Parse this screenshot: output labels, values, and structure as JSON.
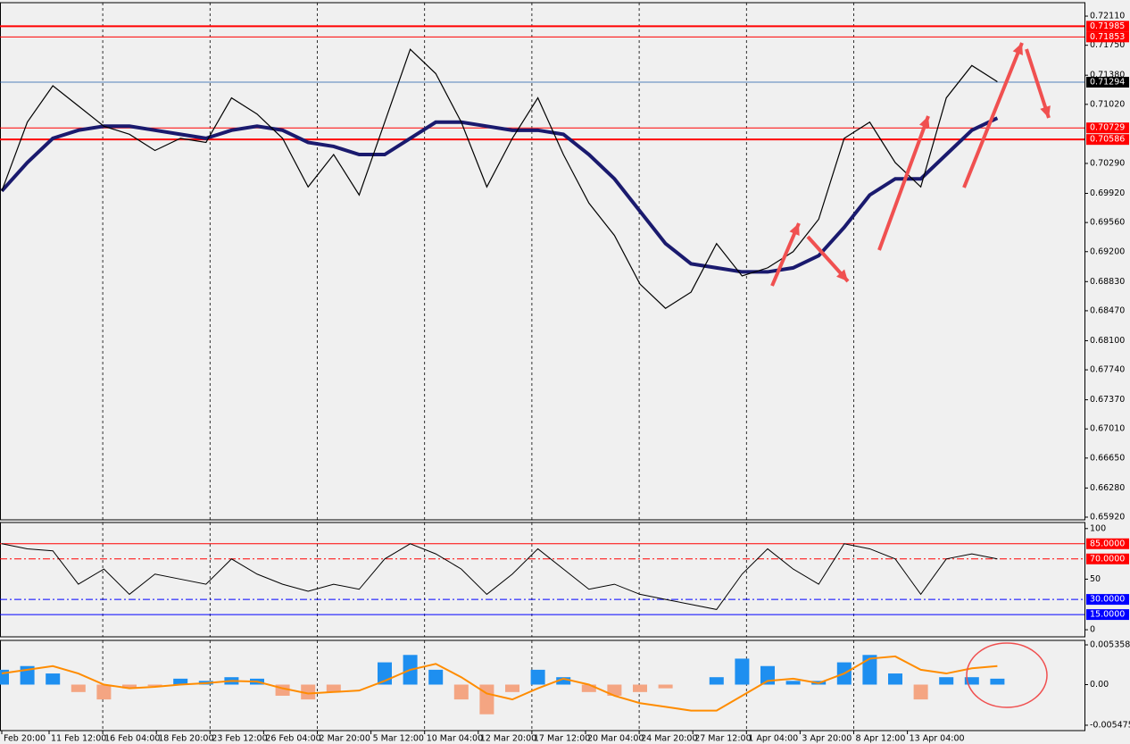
{
  "chart_data": [
    {
      "type": "line",
      "color": "#000000",
      "ma_color": "#1a1a6e",
      "ylim": [
        0.65887,
        0.72276
      ],
      "yticks": [
        {
          "value": 0.7211,
          "label": "0.72110"
        },
        {
          "value": 0.7175,
          "label": "0.71750"
        },
        {
          "value": 0.7138,
          "label": "0.71380"
        },
        {
          "value": 0.7102,
          "label": "0.71020"
        },
        {
          "value": 0.7029,
          "label": "0.70290"
        },
        {
          "value": 0.6992,
          "label": "0.69920"
        },
        {
          "value": 0.6956,
          "label": "0.69560"
        },
        {
          "value": 0.692,
          "label": "0.69200"
        },
        {
          "value": 0.6883,
          "label": "0.68830"
        },
        {
          "value": 0.6847,
          "label": "0.68470"
        },
        {
          "value": 0.681,
          "label": "0.68100"
        },
        {
          "value": 0.6774,
          "label": "0.67740"
        },
        {
          "value": 0.6737,
          "label": "0.67370"
        },
        {
          "value": 0.6701,
          "label": "0.67010"
        },
        {
          "value": 0.6665,
          "label": "0.66650"
        },
        {
          "value": 0.6628,
          "label": "0.66280"
        },
        {
          "value": 0.6592,
          "label": "0.65920"
        }
      ],
      "levels": [
        0.71985,
        0.71853,
        0.70729,
        0.70586
      ],
      "level_color": "#ff0000",
      "last_price": 0.71294,
      "last_price_color": "#1e5aa8",
      "values": [
        0.6995,
        0.708,
        0.7125,
        0.71,
        0.7075,
        0.7065,
        0.7045,
        0.706,
        0.7055,
        0.711,
        0.709,
        0.706,
        0.7,
        0.704,
        0.699,
        0.708,
        0.717,
        0.714,
        0.708,
        0.7,
        0.706,
        0.711,
        0.704,
        0.698,
        0.694,
        0.688,
        0.685,
        0.687,
        0.693,
        0.689,
        0.69,
        0.692,
        0.696,
        0.706,
        0.708,
        0.703,
        0.7,
        0.711,
        0.715,
        0.713
      ],
      "ma": [
        0.6995,
        0.703,
        0.706,
        0.707,
        0.7075,
        0.7075,
        0.707,
        0.7065,
        0.706,
        0.707,
        0.7075,
        0.707,
        0.7055,
        0.705,
        0.704,
        0.704,
        0.706,
        0.708,
        0.708,
        0.7075,
        0.707,
        0.707,
        0.7065,
        0.704,
        0.701,
        0.697,
        0.693,
        0.6905,
        0.69,
        0.6895,
        0.6895,
        0.69,
        0.6915,
        0.695,
        0.699,
        0.701,
        0.701,
        0.704,
        0.707,
        0.7085
      ]
    },
    {
      "type": "line",
      "color": "#000000",
      "ylim": [
        -7,
        106
      ],
      "yticks": [
        100,
        50,
        0
      ],
      "levels": [
        {
          "value": 85,
          "label": "85.0000"
        },
        {
          "value": 70,
          "label": "70.0000"
        },
        {
          "value": 30,
          "label": "30.0000"
        },
        {
          "value": 15,
          "label": "15.0000"
        }
      ],
      "level_colors": [
        "#ff0000",
        "#ff0000",
        "#0000ff",
        "#0000ff"
      ],
      "values": [
        85,
        80,
        78,
        45,
        60,
        35,
        55,
        50,
        45,
        70,
        55,
        45,
        38,
        45,
        40,
        70,
        85,
        75,
        60,
        35,
        55,
        80,
        60,
        40,
        45,
        35,
        30,
        25,
        20,
        55,
        80,
        60,
        45,
        85,
        80,
        70,
        35,
        70,
        75,
        70
      ]
    },
    {
      "type": "combo",
      "up_color": "#1e8ff0",
      "down_color": "#f4a582",
      "signal_color": "#ff8c00",
      "ylim": [
        -0.0062,
        0.00596
      ],
      "yticks": [
        0.005358,
        {
          "value": 0,
          "label": "0.00"
        },
        -0.005475
      ],
      "x_labels": [
        "Feb 20:00",
        "11 Feb 12:00",
        "16 Feb 04:00",
        "18 Feb 20:00",
        "23 Feb 12:00",
        "26 Feb 04:00",
        "2 Mar 20:00",
        "5 Mar 12:00",
        "10 Mar 04:00",
        "12 Mar 20:00",
        "17 Mar 12:00",
        "20 Mar 04:00",
        "24 Mar 20:00",
        "27 Mar 12:00",
        "1 Apr 04:00",
        "3 Apr 20:00",
        "8 Apr 12:00",
        "13 Apr 04:00"
      ],
      "values": [
        0.002,
        0.0025,
        0.0015,
        -0.001,
        -0.002,
        -0.0005,
        -0.0002,
        0.0008,
        0.0005,
        0.001,
        0.0008,
        -0.0015,
        -0.002,
        -0.001,
        0.0,
        0.003,
        0.004,
        0.002,
        -0.002,
        -0.004,
        -0.001,
        0.002,
        0.001,
        -0.001,
        -0.0015,
        -0.001,
        -0.0005,
        0.0,
        0.001,
        0.0035,
        0.0025,
        0.0005,
        0.0005,
        0.003,
        0.004,
        0.0015,
        -0.002,
        0.001,
        0.001,
        0.0008
      ],
      "signal": [
        0.0015,
        0.002,
        0.0025,
        0.0015,
        0.0,
        -0.0005,
        -0.0003,
        0,
        0.0002,
        0.0005,
        0.0004,
        -0.0005,
        -0.0012,
        -0.001,
        -0.0008,
        0.0005,
        0.002,
        0.0028,
        0.001,
        -0.0012,
        -0.002,
        -0.0005,
        0.0008,
        0.0,
        -0.0015,
        -0.0025,
        -0.003,
        -0.0035,
        -0.0035,
        -0.0015,
        0.0005,
        0.0008,
        0.0002,
        0.0015,
        0.0035,
        0.0038,
        0.002,
        0.0015,
        0.0022,
        0.0025
      ]
    }
  ]
}
